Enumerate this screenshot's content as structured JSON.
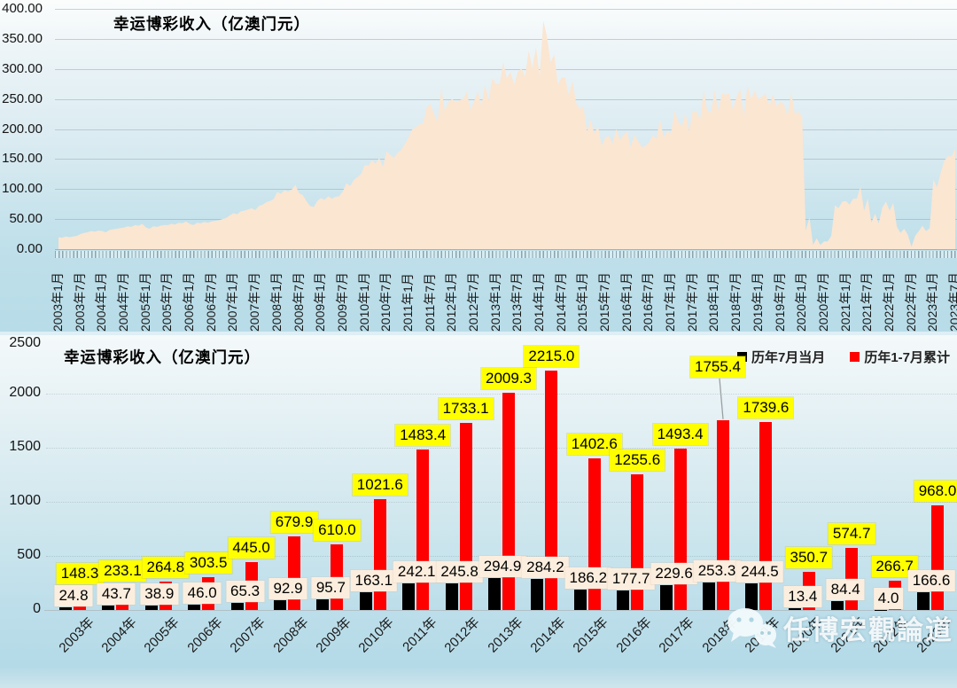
{
  "watermark": {
    "text": "任博宏觀論道",
    "icon": "wechat-icon"
  },
  "colors": {
    "area_fill": "#fbe6d2",
    "bar_black": "#000000",
    "bar_red": "#ff0000",
    "label_yellow": "#ffff00",
    "label_cream": "#fceede"
  },
  "chart_data": [
    {
      "type": "area",
      "title": "幸运博彩收入（亿澳门元）",
      "ylim": [
        0,
        400
      ],
      "ytick_labels": [
        "400.00",
        "350.00",
        "300.00",
        "250.00",
        "200.00",
        "150.00",
        "100.00",
        "50.00",
        "0.00"
      ],
      "x_range": [
        "2003年1月",
        "2023年7月"
      ],
      "xtick_labels": [
        "2003年1月",
        "2003年7月",
        "2004年1月",
        "2004年7月",
        "2005年1月",
        "2005年7月",
        "2006年1月",
        "2006年7月",
        "2007年1月",
        "2007年7月",
        "2008年1月",
        "2008年7月",
        "2009年1月",
        "2009年7月",
        "2010年1月",
        "2010年7月",
        "2011年1月",
        "2011年7月",
        "2012年1月",
        "2012年7月",
        "2013年1月",
        "2013年7月",
        "2014年1月",
        "2014年7月",
        "2015年1月",
        "2015年7月",
        "2016年1月",
        "2016年7月",
        "2017年1月",
        "2017年7月",
        "2018年1月",
        "2018年7月",
        "2019年1月",
        "2019年7月",
        "2020年1月",
        "2020年7月",
        "2021年1月",
        "2021年7月",
        "2022年1月",
        "2022年7月",
        "2023年1月",
        "2023年7月"
      ],
      "grid": "horizontal",
      "legend": "none",
      "series": [
        {
          "name": "幸运博彩收入",
          "values": [
            20,
            19,
            21,
            20,
            21,
            22,
            25,
            27,
            28,
            30,
            29,
            31,
            30,
            28,
            32,
            33,
            34,
            35,
            36,
            38,
            37,
            40,
            39,
            42,
            36,
            34,
            38,
            37,
            39,
            40,
            40,
            42,
            41,
            44,
            43,
            46,
            42,
            40,
            44,
            43,
            45,
            44,
            46,
            47,
            48,
            50,
            52,
            56,
            60,
            58,
            63,
            64,
            66,
            68,
            65,
            72,
            74,
            78,
            80,
            83,
            95,
            92,
            98,
            96,
            99,
            107,
            93,
            90,
            80,
            72,
            70,
            80,
            85,
            82,
            88,
            84,
            87,
            88,
            96,
            110,
            105,
            115,
            120,
            125,
            140,
            139,
            148,
            142,
            152,
            137,
            163,
            157,
            152,
            160,
            165,
            175,
            186,
            199,
            203,
            208,
            209,
            236,
            242,
            225,
            212,
            268,
            230,
            245,
            250,
            245,
            248,
            250,
            262,
            232,
            246,
            263,
            238,
            274,
            248,
            285,
            275,
            275,
            311,
            284,
            295,
            274,
            295,
            301,
            287,
            330,
            302,
            336,
            287,
            380,
            354,
            311,
            324,
            274,
            285,
            286,
            256,
            280,
            243,
            233,
            238,
            195,
            215,
            192,
            205,
            172,
            186,
            189,
            176,
            200,
            182,
            190,
            196,
            170,
            190,
            180,
            170,
            172,
            178,
            189,
            184,
            217,
            186,
            196,
            193,
            230,
            213,
            204,
            227,
            197,
            230,
            230,
            214,
            265,
            230,
            227,
            265,
            230,
            259,
            257,
            259,
            232,
            253,
            267,
            219,
            273,
            250,
            264,
            249,
            254,
            259,
            238,
            258,
            237,
            245,
            242,
            221,
            261,
            226,
            228,
            221,
            31,
            53,
            7,
            18,
            7,
            13,
            13,
            22,
            73,
            68,
            79,
            80,
            74,
            84,
            84,
            104,
            64,
            84,
            44,
            59,
            43,
            69,
            79,
            64,
            77,
            37,
            27,
            34,
            24,
            4,
            22,
            30,
            39,
            30,
            35,
            116,
            103,
            127,
            147,
            155,
            154,
            167
          ]
        }
      ]
    },
    {
      "type": "bar",
      "title": "幸运博彩收入（亿澳门元）",
      "ylim": [
        0,
        2500
      ],
      "ytick_labels": [
        "0",
        "500",
        "1000",
        "1500",
        "2000",
        "2500"
      ],
      "categories": [
        "2003年",
        "2004年",
        "2005年",
        "2006年",
        "2007年",
        "2008年",
        "2009年",
        "2010年",
        "2011年",
        "2012年",
        "2013年",
        "2014年",
        "2015年",
        "2016年",
        "2017年",
        "2018年",
        "2019年",
        "2020年",
        "2021年",
        "2022年",
        "2023年"
      ],
      "legend_position": "top-right",
      "grid": "faint-dotted",
      "callout": {
        "category": "2018年",
        "series_index": 1
      },
      "series": [
        {
          "name": "历年7月当月",
          "color": "#000000",
          "label_bg": "#fceede",
          "values": [
            24.8,
            43.7,
            38.9,
            46.0,
            65.3,
            92.9,
            95.7,
            163.1,
            242.1,
            245.8,
            294.9,
            284.2,
            186.2,
            177.7,
            229.6,
            253.3,
            244.5,
            13.4,
            84.4,
            4.0,
            166.6
          ]
        },
        {
          "name": "历年1-7月累计",
          "color": "#ff0000",
          "label_bg": "#ffff00",
          "values": [
            148.3,
            233.1,
            264.8,
            303.5,
            445.0,
            679.9,
            610.0,
            1021.6,
            1483.4,
            1733.1,
            2009.3,
            2215.0,
            1402.6,
            1255.6,
            1493.4,
            1755.4,
            1739.6,
            350.7,
            574.7,
            266.7,
            968.0
          ]
        }
      ]
    }
  ]
}
